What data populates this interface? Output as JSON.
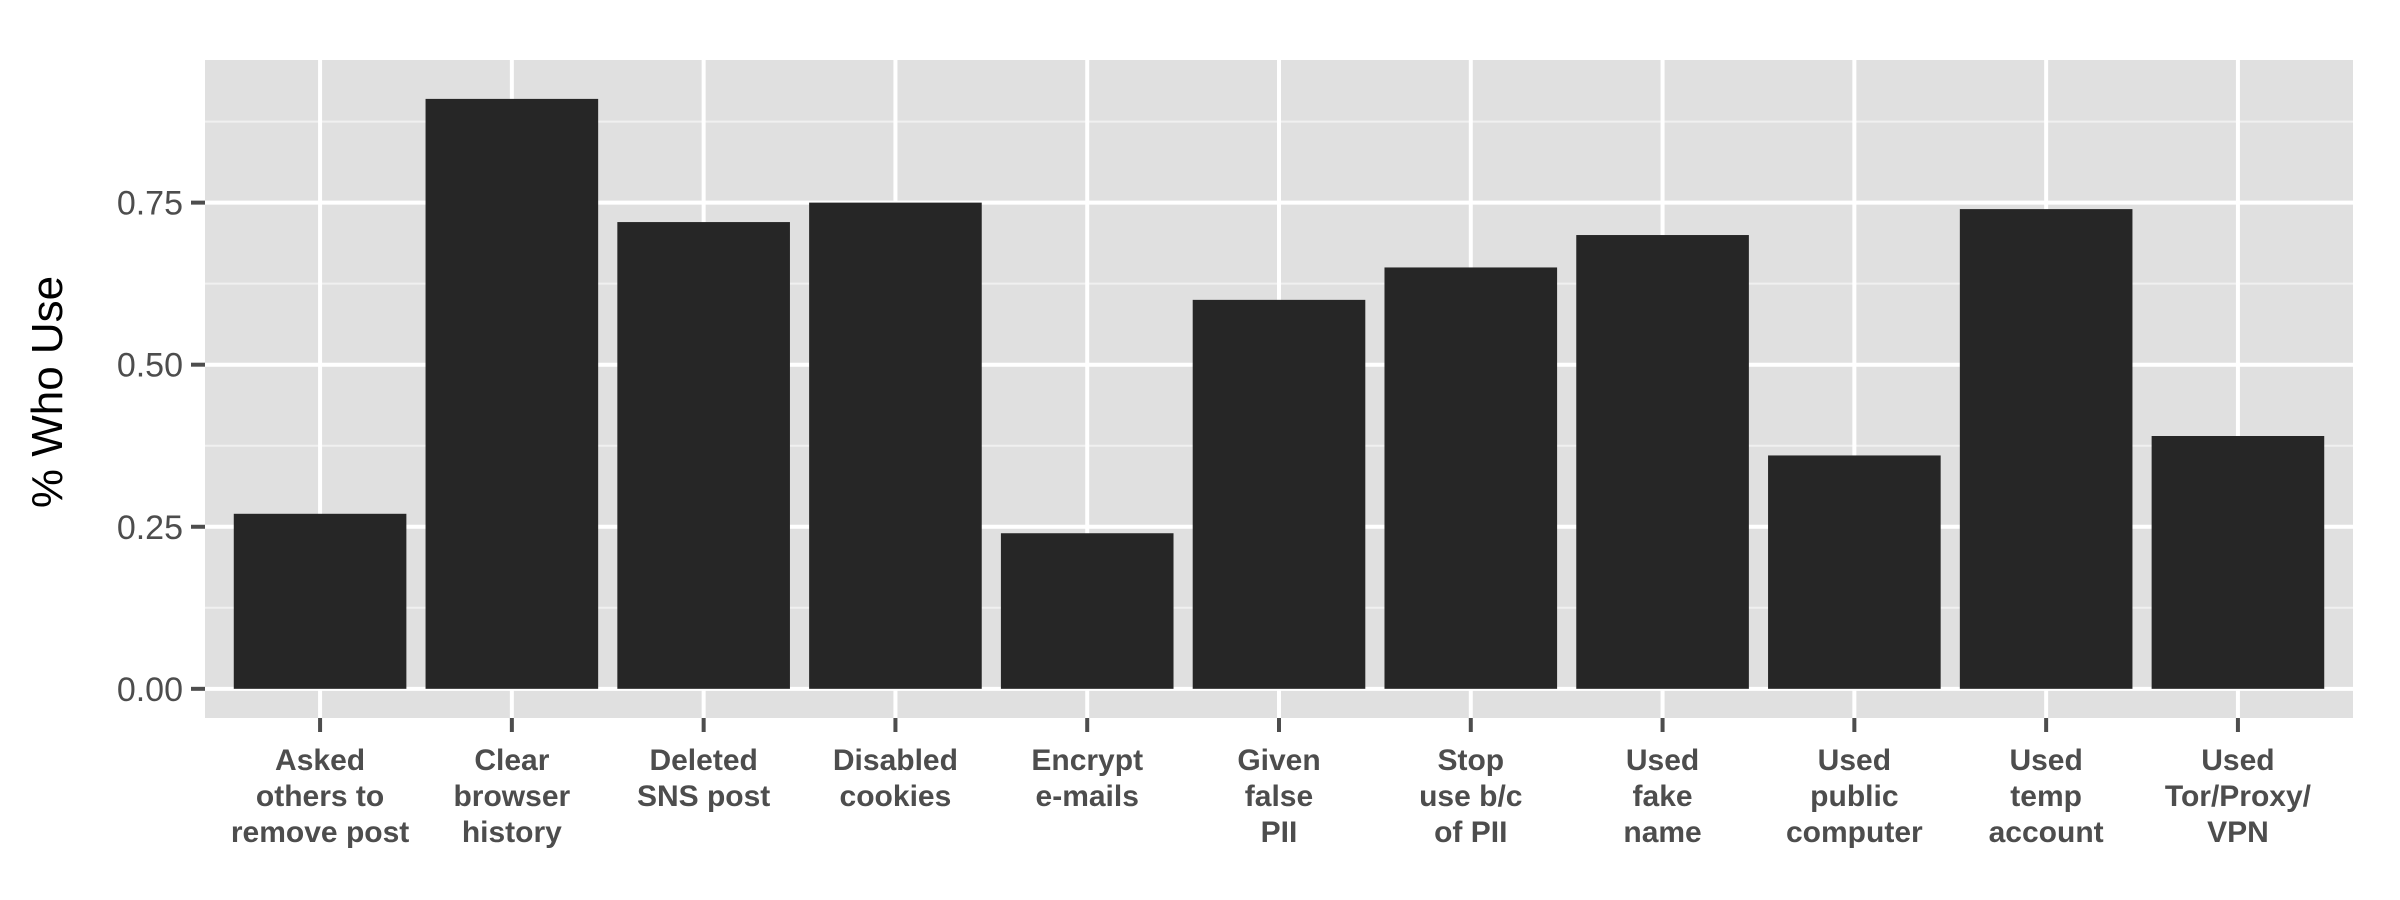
{
  "chart_data": {
    "type": "bar",
    "title": "",
    "xlabel": "",
    "ylabel": "% Who Use",
    "categories": [
      [
        "Asked",
        "others to",
        "remove post"
      ],
      [
        "Clear",
        "browser",
        "history"
      ],
      [
        "Deleted",
        "SNS post"
      ],
      [
        "Disabled",
        "cookies"
      ],
      [
        "Encrypt",
        "e-mails"
      ],
      [
        "Given",
        "false",
        "PII"
      ],
      [
        "Stop",
        "use b/c",
        "of PII"
      ],
      [
        "Used",
        "fake",
        "name"
      ],
      [
        "Used",
        "public",
        "computer"
      ],
      [
        "Used",
        "temp",
        "account"
      ],
      [
        "Used",
        "Tor/Proxy/",
        "VPN"
      ]
    ],
    "values": [
      0.27,
      0.91,
      0.72,
      0.75,
      0.24,
      0.6,
      0.65,
      0.7,
      0.36,
      0.74,
      0.39
    ],
    "ylim": [
      -0.045,
      0.97
    ],
    "yticks": [
      0,
      0.25,
      0.5,
      0.75
    ],
    "ytick_labels": [
      "0.00",
      "0.25",
      "0.50",
      "0.75"
    ],
    "grid": true,
    "legend": "none",
    "colors": {
      "panel": "#e0e0e0",
      "grid_major": "#ffffff",
      "grid_minor": "#f0f0f0",
      "bar": "#262626",
      "tick": "#4d4d4d"
    }
  }
}
